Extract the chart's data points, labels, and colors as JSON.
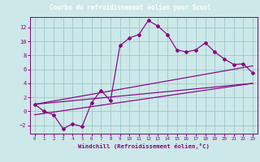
{
  "title": "Courbe du refroidissement éolien pour Scuol",
  "xlabel": "Windchill (Refroidissement éolien,°C)",
  "bg_color": "#cce8e8",
  "grid_color": "#9fc8c8",
  "line_color": "#880088",
  "xlim": [
    -0.5,
    23.5
  ],
  "ylim": [
    -3.2,
    13.5
  ],
  "xticks": [
    0,
    1,
    2,
    3,
    4,
    5,
    6,
    7,
    8,
    9,
    10,
    11,
    12,
    13,
    14,
    15,
    16,
    17,
    18,
    19,
    20,
    21,
    22,
    23
  ],
  "yticks": [
    -2,
    0,
    2,
    4,
    6,
    8,
    10,
    12
  ],
  "line1_x": [
    0,
    1,
    2,
    3,
    4,
    5,
    6,
    7,
    8,
    9,
    10,
    11,
    12,
    13,
    14,
    15,
    16,
    17,
    18,
    19,
    20,
    21,
    22,
    23
  ],
  "line1_y": [
    1.0,
    0.0,
    -0.5,
    -2.5,
    -1.8,
    -2.2,
    1.2,
    3.0,
    1.5,
    9.4,
    10.5,
    11.0,
    13.0,
    12.2,
    11.0,
    8.8,
    8.5,
    8.8,
    9.8,
    8.5,
    7.5,
    6.7,
    6.8,
    5.5
  ],
  "line2_x": [
    0,
    23
  ],
  "line2_y": [
    1.0,
    4.0
  ],
  "line3_x": [
    0,
    23
  ],
  "line3_y": [
    1.0,
    6.5
  ],
  "line4_x": [
    0,
    23
  ],
  "line4_y": [
    -0.5,
    4.0
  ],
  "title_bg": "#660066",
  "title_fg": "#ffffff",
  "title_fontsize": 5.5,
  "xlabel_fontsize": 5.2,
  "tick_fontsize_x": 4.2,
  "tick_fontsize_y": 5.0
}
